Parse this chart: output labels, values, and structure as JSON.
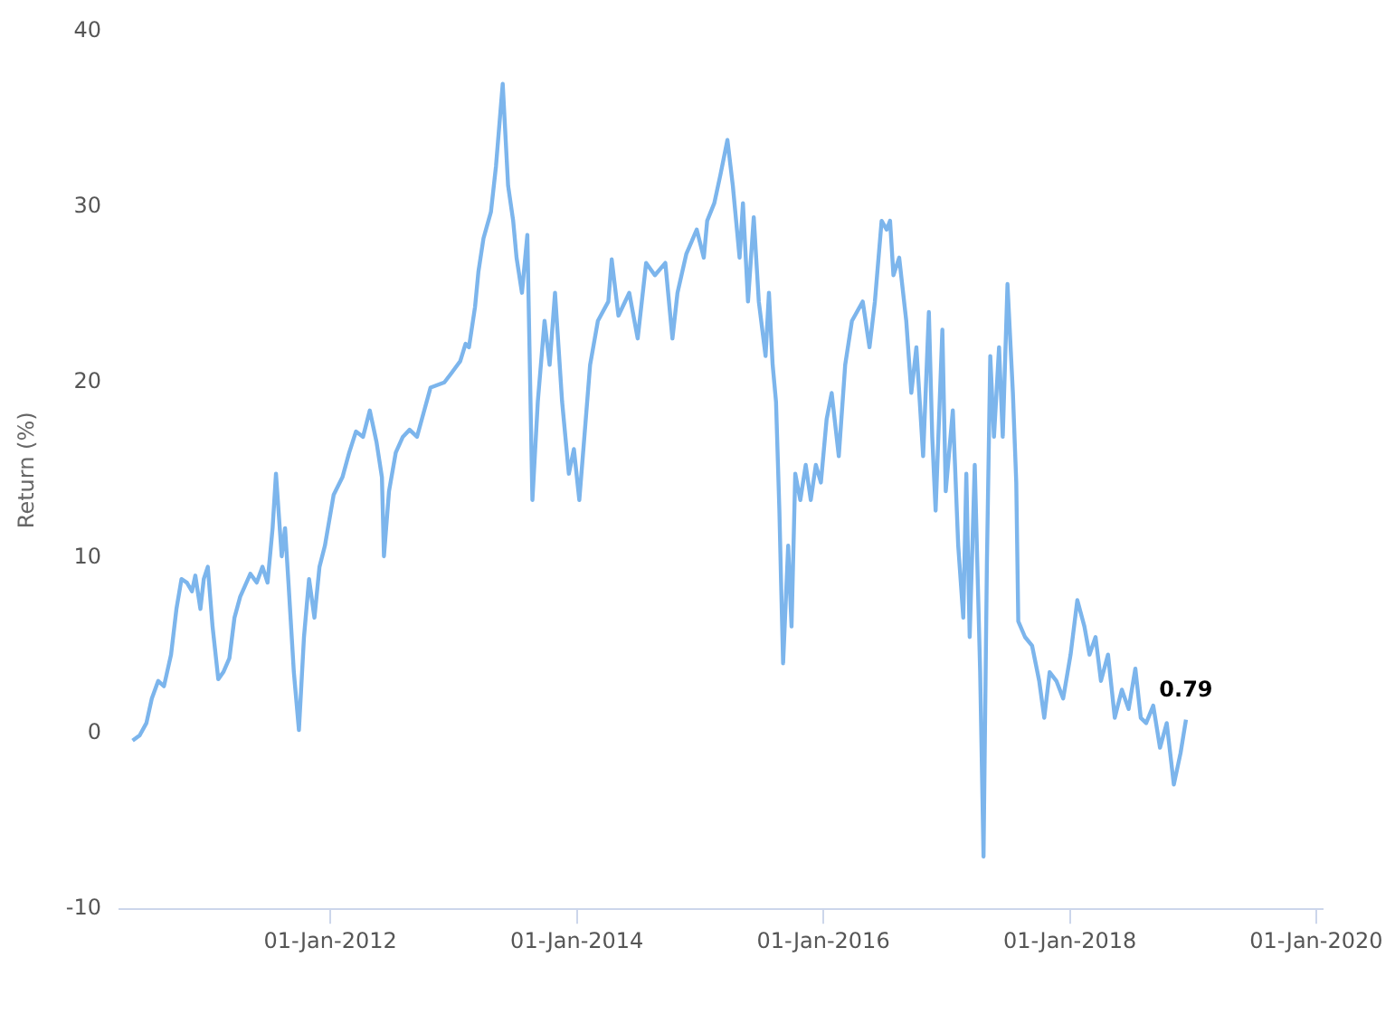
{
  "chart_data": {
    "type": "line",
    "ylabel": "Return (%)",
    "xlim": [
      "2010-04-16",
      "2020-01-20"
    ],
    "ylim": [
      -10,
      40
    ],
    "yticks": [
      -10,
      0,
      10,
      20,
      30,
      40
    ],
    "xticks": [
      {
        "value": "2012-01-01",
        "label": "01-Jan-2012"
      },
      {
        "value": "2014-01-01",
        "label": "01-Jan-2014"
      },
      {
        "value": "2016-01-01",
        "label": "01-Jan-2016"
      },
      {
        "value": "2018-01-01",
        "label": "01-Jan-2018"
      },
      {
        "value": "2020-01-01",
        "label": "01-Jan-2020"
      }
    ],
    "grid": false,
    "legend": false,
    "marker": "none",
    "line_style": "solid",
    "series": [
      {
        "color": "#7cb5ec",
        "x": [
          "2010-05-25",
          "2010-06-15",
          "2010-07-05",
          "2010-07-21",
          "2010-08-09",
          "2010-08-26",
          "2010-09-16",
          "2010-10-02",
          "2010-10-17",
          "2010-11-02",
          "2010-11-17",
          "2010-11-27",
          "2010-12-12",
          "2010-12-22",
          "2011-01-03",
          "2011-01-17",
          "2011-02-03",
          "2011-02-18",
          "2011-03-08",
          "2011-03-23",
          "2011-04-09",
          "2011-04-23",
          "2011-05-09",
          "2011-05-28",
          "2011-06-14",
          "2011-06-29",
          "2011-07-14",
          "2011-07-24",
          "2011-08-10",
          "2011-08-20",
          "2011-08-30",
          "2011-09-15",
          "2011-09-30",
          "2011-10-15",
          "2011-10-30",
          "2011-11-15",
          "2011-11-30",
          "2011-12-16",
          "2012-01-11",
          "2012-02-06",
          "2012-02-26",
          "2012-03-17",
          "2012-04-07",
          "2012-04-27",
          "2012-05-17",
          "2012-06-02",
          "2012-06-08",
          "2012-06-23",
          "2012-07-13",
          "2012-08-03",
          "2012-08-23",
          "2012-09-14",
          "2012-10-04",
          "2012-10-24",
          "2012-12-04",
          "2012-12-24",
          "2013-01-20",
          "2013-02-05",
          "2013-02-15",
          "2013-03-05",
          "2013-03-15",
          "2013-03-30",
          "2013-04-21",
          "2013-05-06",
          "2013-05-26",
          "2013-06-11",
          "2013-06-26",
          "2013-07-06",
          "2013-07-22",
          "2013-08-07",
          "2013-08-22",
          "2013-09-07",
          "2013-09-27",
          "2013-10-12",
          "2013-10-28",
          "2013-11-18",
          "2013-12-08",
          "2013-12-23",
          "2014-01-08",
          "2014-01-23",
          "2014-02-09",
          "2014-03-04",
          "2014-04-04",
          "2014-04-14",
          "2014-05-04",
          "2014-06-05",
          "2014-06-30",
          "2014-07-25",
          "2014-08-20",
          "2014-09-20",
          "2014-10-11",
          "2014-10-26",
          "2014-11-21",
          "2014-12-22",
          "2015-01-12",
          "2015-01-22",
          "2015-02-12",
          "2015-03-02",
          "2015-03-23",
          "2015-04-08",
          "2015-04-28",
          "2015-05-08",
          "2015-05-23",
          "2015-06-09",
          "2015-06-24",
          "2015-07-14",
          "2015-07-24",
          "2015-08-04",
          "2015-08-14",
          "2015-08-24",
          "2015-08-29",
          "2015-09-04",
          "2015-09-19",
          "2015-09-29",
          "2015-10-10",
          "2015-10-25",
          "2015-11-10",
          "2015-11-25",
          "2015-12-10",
          "2015-12-25",
          "2016-01-11",
          "2016-01-26",
          "2016-02-16",
          "2016-03-06",
          "2016-03-26",
          "2016-04-27",
          "2016-05-17",
          "2016-06-02",
          "2016-06-22",
          "2016-07-07",
          "2016-07-17",
          "2016-07-27",
          "2016-08-13",
          "2016-09-03",
          "2016-09-18",
          "2016-10-03",
          "2016-10-23",
          "2016-11-09",
          "2016-11-19",
          "2016-11-29",
          "2016-12-19",
          "2016-12-29",
          "2017-01-19",
          "2017-02-04",
          "2017-02-19",
          "2017-02-28",
          "2017-03-10",
          "2017-03-25",
          "2017-04-10",
          "2017-04-20",
          "2017-04-30",
          "2017-05-10",
          "2017-05-21",
          "2017-06-05",
          "2017-06-16",
          "2017-06-30",
          "2017-07-16",
          "2017-07-26",
          "2017-08-01",
          "2017-08-21",
          "2017-09-11",
          "2017-10-02",
          "2017-10-17",
          "2017-11-02",
          "2017-11-22",
          "2017-12-12",
          "2018-01-03",
          "2018-01-23",
          "2018-02-13",
          "2018-02-28",
          "2018-03-18",
          "2018-04-03",
          "2018-04-24",
          "2018-05-14",
          "2018-06-04",
          "2018-06-24",
          "2018-07-14",
          "2018-07-30",
          "2018-08-15",
          "2018-09-05",
          "2018-09-25",
          "2018-10-15",
          "2018-11-05",
          "2018-11-25",
          "2018-12-11"
        ],
        "values": [
          -0.4,
          -0.1,
          0.6,
          2.0,
          3.0,
          2.7,
          4.5,
          7.1,
          8.8,
          8.6,
          8.1,
          9.0,
          7.1,
          8.8,
          9.5,
          6.1,
          3.1,
          3.5,
          4.3,
          6.6,
          7.8,
          8.4,
          9.1,
          8.6,
          9.5,
          8.6,
          11.7,
          14.8,
          10.1,
          11.7,
          8.6,
          3.5,
          0.2,
          5.5,
          8.8,
          6.6,
          9.5,
          10.7,
          13.6,
          14.6,
          16.0,
          17.2,
          16.9,
          18.4,
          16.6,
          14.6,
          10.1,
          13.8,
          16.0,
          16.9,
          17.3,
          16.9,
          18.3,
          19.7,
          20.0,
          20.5,
          21.2,
          22.2,
          22.0,
          24.3,
          26.3,
          28.2,
          29.7,
          32.3,
          37.0,
          31.2,
          29.2,
          27.1,
          25.1,
          28.4,
          13.3,
          18.9,
          23.5,
          21.0,
          25.1,
          18.9,
          14.8,
          16.2,
          13.3,
          16.9,
          21.0,
          23.5,
          24.6,
          27.0,
          23.8,
          25.1,
          22.5,
          26.8,
          26.1,
          26.8,
          22.5,
          25.1,
          27.3,
          28.7,
          27.1,
          29.2,
          30.2,
          31.8,
          33.8,
          31.2,
          27.1,
          30.2,
          24.6,
          29.4,
          24.6,
          21.5,
          25.1,
          21.0,
          18.9,
          12.7,
          8.6,
          4.0,
          10.7,
          6.1,
          14.8,
          13.3,
          15.3,
          13.3,
          15.3,
          14.3,
          17.9,
          19.4,
          15.8,
          21.0,
          23.5,
          24.6,
          22.0,
          24.6,
          29.2,
          28.7,
          29.2,
          26.1,
          27.1,
          23.5,
          19.4,
          22.0,
          15.8,
          24.0,
          16.9,
          12.7,
          23.0,
          13.8,
          18.4,
          10.7,
          6.6,
          14.8,
          5.5,
          15.3,
          3.5,
          -7.0,
          9.7,
          21.5,
          16.9,
          22.0,
          16.9,
          25.6,
          19.4,
          14.3,
          6.4,
          5.5,
          5.0,
          3.0,
          0.9,
          3.5,
          3.0,
          2.0,
          4.5,
          7.6,
          6.1,
          4.5,
          5.5,
          3.0,
          4.5,
          0.9,
          2.5,
          1.4,
          3.7,
          0.9,
          0.6,
          1.6,
          -0.8,
          0.6,
          -2.9,
          -1.1,
          0.79
        ],
        "value_labels": [
          null,
          null,
          null,
          null,
          null,
          null,
          null,
          null,
          null,
          null,
          null,
          null,
          null,
          null,
          null,
          null,
          null,
          null,
          null,
          null,
          null,
          null,
          null,
          null,
          null,
          null,
          null,
          null,
          null,
          null,
          null,
          null,
          null,
          null,
          null,
          null,
          null,
          null,
          null,
          null,
          null,
          null,
          null,
          null,
          null,
          null,
          null,
          null,
          null,
          null,
          null,
          null,
          null,
          null,
          null,
          null,
          null,
          null,
          null,
          null,
          null,
          null,
          null,
          null,
          null,
          null,
          null,
          null,
          null,
          null,
          null,
          null,
          null,
          null,
          null,
          null,
          null,
          null,
          null,
          null,
          null,
          null,
          null,
          null,
          null,
          null,
          null,
          null,
          null,
          null,
          null,
          null,
          null,
          null,
          null,
          null,
          null,
          null,
          null,
          null,
          null,
          null,
          null,
          null,
          null,
          null,
          null,
          null,
          null,
          null,
          null,
          null,
          null,
          null,
          null,
          null,
          null,
          null,
          null,
          null,
          null,
          null,
          null,
          null,
          null,
          null,
          null,
          null,
          null,
          null,
          null,
          null,
          null,
          null,
          null,
          null,
          null,
          null,
          null,
          null,
          null,
          null,
          null,
          null,
          null,
          null,
          null,
          null,
          null,
          null,
          null,
          null,
          null,
          null,
          null,
          null,
          null,
          null,
          null,
          null,
          null,
          null,
          null,
          null,
          null,
          null,
          null,
          null,
          null,
          null,
          null,
          null,
          null,
          null,
          null,
          null,
          null,
          null,
          null,
          null,
          null,
          null,
          null,
          null,
          "0.79"
        ]
      }
    ]
  }
}
